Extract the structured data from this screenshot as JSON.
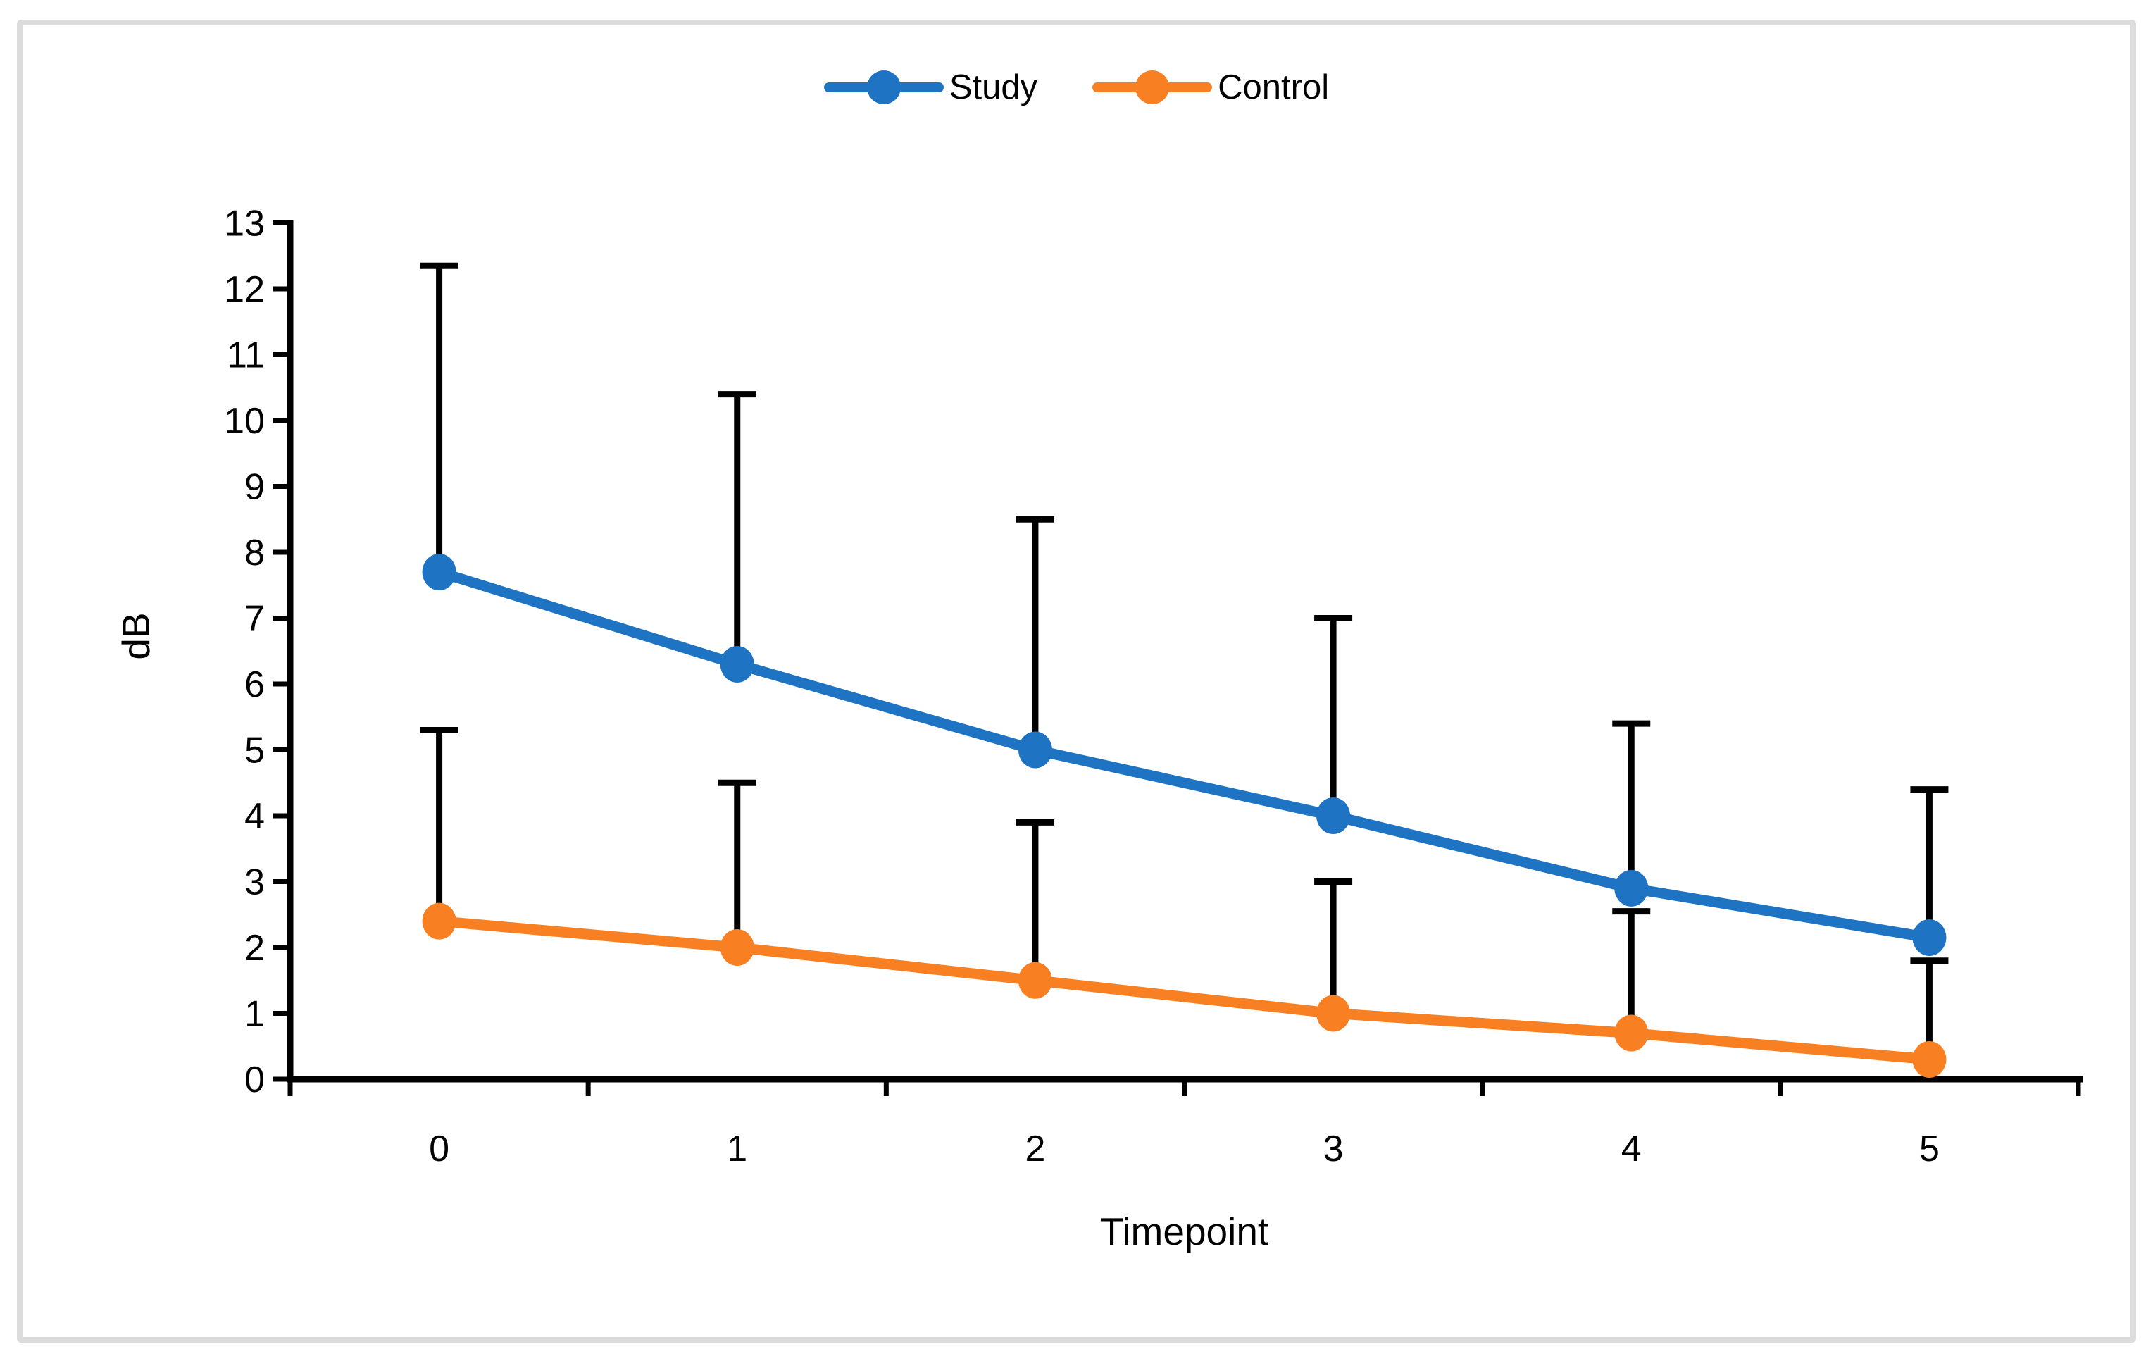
{
  "figure": {
    "background_color": "#ffffff",
    "border_color": "#dcdcdc",
    "axis_color": "#000000",
    "text_color": "#000000"
  },
  "chart_data": {
    "type": "line",
    "title": "",
    "categories": [
      "0",
      "1",
      "2",
      "3",
      "4",
      "5"
    ],
    "series": [
      {
        "name": "Study",
        "color": "#1e73c3",
        "values": [
          7.7,
          6.3,
          5.0,
          4.0,
          2.9,
          2.15
        ],
        "upper_error_tops": [
          12.35,
          10.4,
          8.5,
          7.0,
          5.4,
          4.4
        ]
      },
      {
        "name": "Control",
        "color": "#f98022",
        "values": [
          2.4,
          2.0,
          1.5,
          1.0,
          0.7,
          0.3
        ],
        "upper_error_tops": [
          5.3,
          4.5,
          3.9,
          3.0,
          2.55,
          1.8
        ]
      }
    ],
    "xlabel": "Timepoint",
    "ylabel": "dB",
    "ylim": [
      0,
      13
    ],
    "ytick_step": 1,
    "grid": false,
    "error_bars": "upper_only",
    "error_bar_color": "#000000",
    "legend_position": "top-center",
    "legend_labels": [
      "Study",
      "Control"
    ]
  }
}
